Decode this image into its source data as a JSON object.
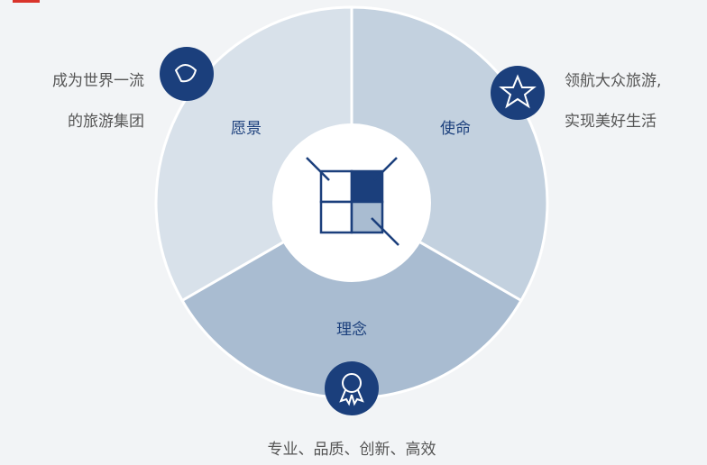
{
  "segments": [
    {
      "label": "愿景",
      "text": [
        "成为世界一流",
        "的旅游集团"
      ]
    },
    {
      "label": "使命",
      "text": [
        "领航大众旅游,",
        "实现美好生活"
      ]
    },
    {
      "label": "理念",
      "text": [
        "专业、品质、创新、高效"
      ]
    }
  ]
}
